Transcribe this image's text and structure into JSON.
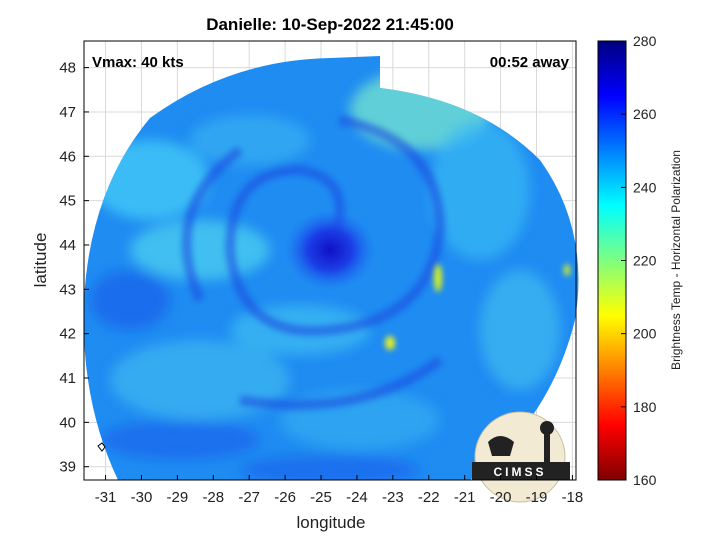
{
  "chart_data": {
    "type": "heatmap",
    "title": "Danielle: 10-Sep-2022 21:45:00",
    "xlabel": "longitude",
    "ylabel": "latitude",
    "xlim": [
      -31.6,
      -17.9
    ],
    "ylim": [
      38.7,
      48.6
    ],
    "x_ticks": [
      -31,
      -30,
      -29,
      -28,
      -27,
      -26,
      -25,
      -24,
      -23,
      -22,
      -21,
      -20,
      -19,
      -18
    ],
    "y_ticks": [
      39,
      40,
      41,
      42,
      43,
      44,
      45,
      46,
      47,
      48
    ],
    "grid": true,
    "storm_center": {
      "lon": -24.7,
      "lat": 43.9
    },
    "colorbar": {
      "label": "Brightness Temp - Horizontal Polarization",
      "min": 160,
      "max": 280,
      "ticks": [
        160,
        180,
        200,
        220,
        240,
        260,
        280
      ],
      "colormap": "jet"
    },
    "annotations": {
      "left": "Vmax: 40 kts",
      "right": "00:52 away"
    }
  },
  "logo": {
    "text": "CIMSS"
  },
  "colors": {
    "background": "#ffffff",
    "gridline": "#d9d9d9",
    "axis": "#000000"
  }
}
